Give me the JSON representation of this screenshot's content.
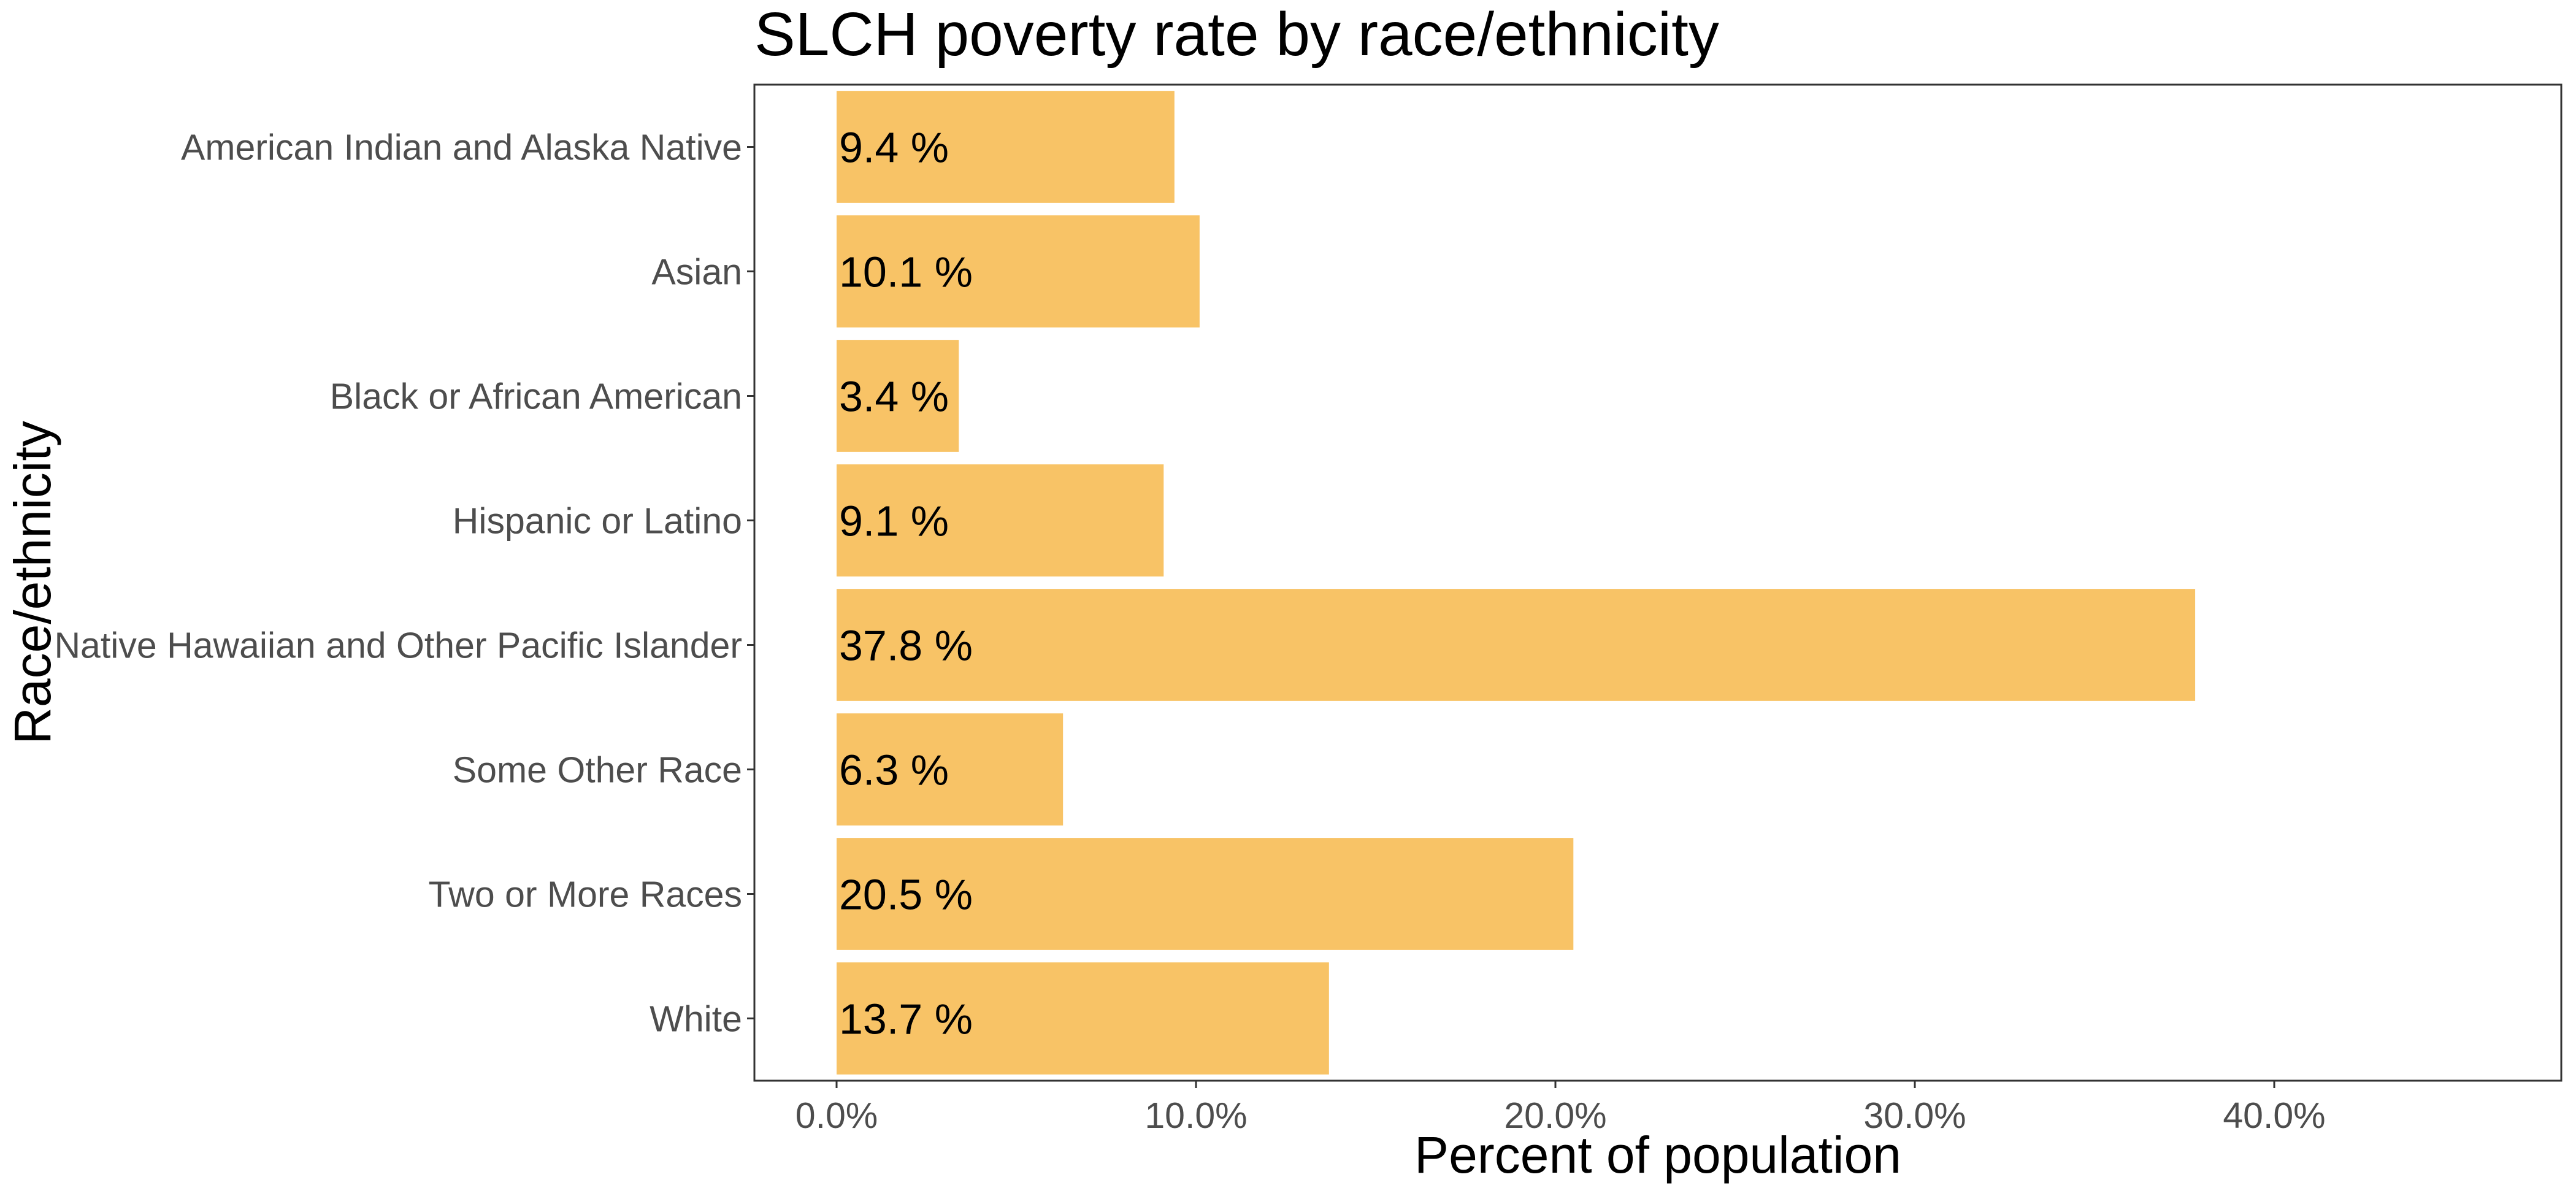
{
  "chart_data": {
    "type": "bar",
    "orientation": "horizontal",
    "title": "SLCH poverty rate by race/ethnicity",
    "xlabel": "Percent of population",
    "ylabel": "Race/ethnicity",
    "categories": [
      "American Indian and Alaska Native",
      "Asian",
      "Black or African American",
      "Hispanic or Latino",
      "Native Hawaiian and Other Pacific Islander",
      "Some Other Race",
      "Two or More Races",
      "White"
    ],
    "values": [
      9.4,
      10.1,
      3.4,
      9.1,
      37.8,
      6.3,
      20.5,
      13.7
    ],
    "data_labels": [
      "9.4 %",
      "10.1 %",
      "3.4 %",
      "9.1 %",
      "37.8 %",
      "6.3 %",
      "20.5 %",
      "13.7 %"
    ],
    "x_ticks": [
      0,
      10,
      20,
      30,
      40
    ],
    "x_tick_labels": [
      "0.0%",
      "10.0%",
      "20.0%",
      "30.0%",
      "40.0%"
    ],
    "xlim": [
      -2.27,
      47.6
    ],
    "grid": false,
    "bar_color": "#F8C366",
    "frame_color": "#333333"
  }
}
